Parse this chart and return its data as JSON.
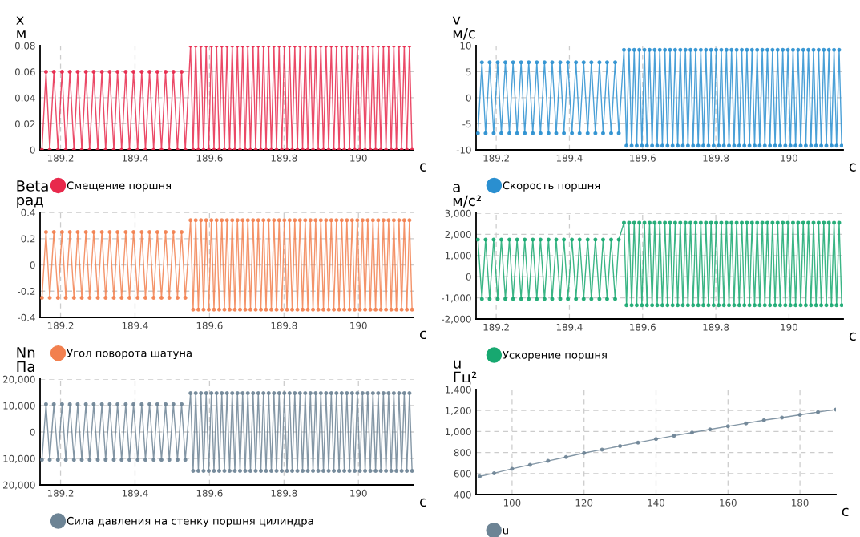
{
  "chart_data": [
    {
      "type": "line",
      "ylabel": "x\nм",
      "xlabel": "с",
      "xlim": [
        189.145,
        190.148
      ],
      "xticks": [
        189.2,
        189.4,
        189.6,
        189.8,
        190
      ],
      "ylim": [
        0,
        0.08
      ],
      "yticks": [
        0,
        0.02,
        0.04,
        0.06,
        0.08
      ],
      "grid": true,
      "legend": "bottom",
      "marker": "circle",
      "line_style": "solid",
      "x": [
        189.15,
        189.161,
        189.171,
        189.182,
        189.193,
        189.204,
        189.214,
        189.225,
        189.236,
        189.246,
        189.257,
        189.268,
        189.278,
        189.289,
        189.3,
        189.311,
        189.321,
        189.332,
        189.343,
        189.353,
        189.364,
        189.375,
        189.385,
        189.396,
        189.407,
        189.418,
        189.428,
        189.439,
        189.45,
        189.46,
        189.471,
        189.482,
        189.492,
        189.503,
        189.514,
        189.525,
        189.535,
        189.549,
        189.556,
        189.563,
        189.57,
        189.577,
        189.584,
        189.591,
        189.598,
        189.605,
        189.612,
        189.619,
        189.626,
        189.633,
        189.64,
        189.647,
        189.654,
        189.661,
        189.668,
        189.675,
        189.682,
        189.689,
        189.696,
        189.703,
        189.71,
        189.717,
        189.724,
        189.731,
        189.738,
        189.745,
        189.752,
        189.759,
        189.766,
        189.773,
        189.78,
        189.787,
        189.794,
        189.801,
        189.808,
        189.815,
        189.822,
        189.829,
        189.836,
        189.843,
        189.85,
        189.857,
        189.864,
        189.871,
        189.878,
        189.885,
        189.892,
        189.899,
        189.906,
        189.913,
        189.92,
        189.927,
        189.934,
        189.941,
        189.948,
        189.955,
        189.962,
        189.969,
        189.976,
        189.983,
        189.99,
        189.997,
        190.004,
        190.011,
        190.018,
        190.025,
        190.032,
        190.039,
        190.046,
        190.053,
        190.06,
        190.067,
        190.074,
        190.081,
        190.088,
        190.095,
        190.102,
        190.109,
        190.116,
        190.123,
        190.13,
        190.137,
        190.144
      ],
      "series": [
        {
          "name": "Смещение поршня",
          "color": "#e8294c",
          "values": [
            0,
            0.06,
            0,
            0.06,
            0,
            0.06,
            0,
            0.06,
            0,
            0.06,
            0,
            0.06,
            0,
            0.06,
            0,
            0.06,
            0,
            0.06,
            0,
            0.06,
            0,
            0.06,
            0,
            0.06,
            0,
            0.06,
            0,
            0.06,
            0,
            0.06,
            0,
            0.06,
            0,
            0.06,
            0,
            0.06,
            0,
            0.08,
            0,
            0.08,
            0,
            0.08,
            0,
            0.08,
            0,
            0.08,
            0,
            0.08,
            0,
            0.08,
            0,
            0.08,
            0,
            0.08,
            0,
            0.08,
            0,
            0.08,
            0,
            0.08,
            0,
            0.08,
            0,
            0.08,
            0,
            0.08,
            0,
            0.08,
            0,
            0.08,
            0,
            0.08,
            0,
            0.08,
            0,
            0.08,
            0,
            0.08,
            0,
            0.08,
            0,
            0.08,
            0,
            0.08,
            0,
            0.08,
            0,
            0.08,
            0,
            0.08,
            0,
            0.08,
            0,
            0.08,
            0,
            0.08,
            0,
            0.08,
            0,
            0.08,
            0,
            0.08,
            0,
            0.08,
            0,
            0.08,
            0,
            0.08,
            0,
            0.08,
            0,
            0.08,
            0,
            0.08,
            0,
            0.08,
            0,
            0.08,
            0,
            0.08,
            0,
            0.08,
            0
          ]
        }
      ]
    },
    {
      "type": "line",
      "ylabel": "v\nм/с",
      "xlabel": "с",
      "xlim": [
        189.145,
        190.148
      ],
      "xticks": [
        189.2,
        189.4,
        189.6,
        189.8,
        190
      ],
      "ylim": [
        -10,
        10
      ],
      "yticks": [
        -10,
        -5,
        0,
        5,
        10
      ],
      "grid": true,
      "legend": "bottom",
      "marker": "circle",
      "line_style": "solid",
      "x": [
        189.15,
        189.161,
        189.171,
        189.182,
        189.193,
        189.204,
        189.214,
        189.225,
        189.236,
        189.246,
        189.257,
        189.268,
        189.278,
        189.289,
        189.3,
        189.311,
        189.321,
        189.332,
        189.343,
        189.353,
        189.364,
        189.375,
        189.385,
        189.396,
        189.407,
        189.418,
        189.428,
        189.439,
        189.45,
        189.46,
        189.471,
        189.482,
        189.492,
        189.503,
        189.514,
        189.525,
        189.535,
        189.549,
        189.556,
        189.563,
        189.57,
        189.577,
        189.584,
        189.591,
        189.598,
        189.605,
        189.612,
        189.619,
        189.626,
        189.633,
        189.64,
        189.647,
        189.654,
        189.661,
        189.668,
        189.675,
        189.682,
        189.689,
        189.696,
        189.703,
        189.71,
        189.717,
        189.724,
        189.731,
        189.738,
        189.745,
        189.752,
        189.759,
        189.766,
        189.773,
        189.78,
        189.787,
        189.794,
        189.801,
        189.808,
        189.815,
        189.822,
        189.829,
        189.836,
        189.843,
        189.85,
        189.857,
        189.864,
        189.871,
        189.878,
        189.885,
        189.892,
        189.899,
        189.906,
        189.913,
        189.92,
        189.927,
        189.934,
        189.941,
        189.948,
        189.955,
        189.962,
        189.969,
        189.976,
        189.983,
        189.99,
        189.997,
        190.004,
        190.011,
        190.018,
        190.025,
        190.032,
        190.039,
        190.046,
        190.053,
        190.06,
        190.067,
        190.074,
        190.081,
        190.088,
        190.095,
        190.102,
        190.109,
        190.116,
        190.123,
        190.13,
        190.137,
        190.144
      ],
      "series": [
        {
          "name": "Скорость поршня",
          "color": "#2a8fd0",
          "values": [
            -6.8,
            6.8,
            -6.8,
            6.8,
            -6.8,
            6.8,
            -6.8,
            6.8,
            -6.8,
            6.8,
            -6.8,
            6.8,
            -6.8,
            6.8,
            -6.8,
            6.8,
            -6.8,
            6.8,
            -6.8,
            6.8,
            -6.8,
            6.8,
            -6.8,
            6.8,
            -6.8,
            6.8,
            -6.8,
            6.8,
            -6.8,
            6.8,
            -6.8,
            6.8,
            -6.8,
            6.8,
            -6.8,
            6.8,
            -6.8,
            9.2,
            -9.2,
            9.2,
            -9.2,
            9.2,
            -9.2,
            9.2,
            -9.2,
            9.2,
            -9.2,
            9.2,
            -9.2,
            9.2,
            -9.2,
            9.2,
            -9.2,
            9.2,
            -9.2,
            9.2,
            -9.2,
            9.2,
            -9.2,
            9.2,
            -9.2,
            9.2,
            -9.2,
            9.2,
            -9.2,
            9.2,
            -9.2,
            9.2,
            -9.2,
            9.2,
            -9.2,
            9.2,
            -9.2,
            9.2,
            -9.2,
            9.2,
            -9.2,
            9.2,
            -9.2,
            9.2,
            -9.2,
            9.2,
            -9.2,
            9.2,
            -9.2,
            9.2,
            -9.2,
            9.2,
            -9.2,
            9.2,
            -9.2,
            9.2,
            -9.2,
            9.2,
            -9.2,
            9.2,
            -9.2,
            9.2,
            -9.2,
            9.2,
            -9.2,
            9.2,
            -9.2,
            9.2,
            -9.2,
            9.2,
            -9.2,
            9.2,
            -9.2,
            9.2,
            -9.2,
            9.2,
            -9.2,
            9.2,
            -9.2,
            9.2,
            -9.2,
            9.2,
            -9.2,
            9.2,
            -9.2,
            9.2,
            -9.2
          ]
        }
      ]
    },
    {
      "type": "line",
      "ylabel": "Beta\nрад",
      "xlabel": "с",
      "xlim": [
        189.145,
        190.148
      ],
      "xticks": [
        189.2,
        189.4,
        189.6,
        189.8,
        190
      ],
      "ylim": [
        -0.4,
        0.4
      ],
      "yticks": [
        -0.4,
        -0.2,
        0,
        0.2,
        0.4
      ],
      "grid": true,
      "legend": "bottom",
      "marker": "circle",
      "line_style": "solid",
      "x": [
        189.15,
        189.161,
        189.171,
        189.182,
        189.193,
        189.204,
        189.214,
        189.225,
        189.236,
        189.246,
        189.257,
        189.268,
        189.278,
        189.289,
        189.3,
        189.311,
        189.321,
        189.332,
        189.343,
        189.353,
        189.364,
        189.375,
        189.385,
        189.396,
        189.407,
        189.418,
        189.428,
        189.439,
        189.45,
        189.46,
        189.471,
        189.482,
        189.492,
        189.503,
        189.514,
        189.525,
        189.535,
        189.549,
        189.556,
        189.563,
        189.57,
        189.577,
        189.584,
        189.591,
        189.598,
        189.605,
        189.612,
        189.619,
        189.626,
        189.633,
        189.64,
        189.647,
        189.654,
        189.661,
        189.668,
        189.675,
        189.682,
        189.689,
        189.696,
        189.703,
        189.71,
        189.717,
        189.724,
        189.731,
        189.738,
        189.745,
        189.752,
        189.759,
        189.766,
        189.773,
        189.78,
        189.787,
        189.794,
        189.801,
        189.808,
        189.815,
        189.822,
        189.829,
        189.836,
        189.843,
        189.85,
        189.857,
        189.864,
        189.871,
        189.878,
        189.885,
        189.892,
        189.899,
        189.906,
        189.913,
        189.92,
        189.927,
        189.934,
        189.941,
        189.948,
        189.955,
        189.962,
        189.969,
        189.976,
        189.983,
        189.99,
        189.997,
        190.004,
        190.011,
        190.018,
        190.025,
        190.032,
        190.039,
        190.046,
        190.053,
        190.06,
        190.067,
        190.074,
        190.081,
        190.088,
        190.095,
        190.102,
        190.109,
        190.116,
        190.123,
        190.13,
        190.137,
        190.144
      ],
      "series": [
        {
          "name": "Угол поворота шатуна",
          "color": "#f2804f",
          "values": [
            -0.25,
            0.25,
            -0.25,
            0.25,
            -0.25,
            0.25,
            -0.25,
            0.25,
            -0.25,
            0.25,
            -0.25,
            0.25,
            -0.25,
            0.25,
            -0.25,
            0.25,
            -0.25,
            0.25,
            -0.25,
            0.25,
            -0.25,
            0.25,
            -0.25,
            0.25,
            -0.25,
            0.25,
            -0.25,
            0.25,
            -0.25,
            0.25,
            -0.25,
            0.25,
            -0.25,
            0.25,
            -0.25,
            0.25,
            -0.25,
            0.34,
            -0.34,
            0.34,
            -0.34,
            0.34,
            -0.34,
            0.34,
            -0.34,
            0.34,
            -0.34,
            0.34,
            -0.34,
            0.34,
            -0.34,
            0.34,
            -0.34,
            0.34,
            -0.34,
            0.34,
            -0.34,
            0.34,
            -0.34,
            0.34,
            -0.34,
            0.34,
            -0.34,
            0.34,
            -0.34,
            0.34,
            -0.34,
            0.34,
            -0.34,
            0.34,
            -0.34,
            0.34,
            -0.34,
            0.34,
            -0.34,
            0.34,
            -0.34,
            0.34,
            -0.34,
            0.34,
            -0.34,
            0.34,
            -0.34,
            0.34,
            -0.34,
            0.34,
            -0.34,
            0.34,
            -0.34,
            0.34,
            -0.34,
            0.34,
            -0.34,
            0.34,
            -0.34,
            0.34,
            -0.34,
            0.34,
            -0.34,
            0.34,
            -0.34,
            0.34,
            -0.34,
            0.34,
            -0.34,
            0.34,
            -0.34,
            0.34,
            -0.34,
            0.34,
            -0.34,
            0.34,
            -0.34,
            0.34,
            -0.34,
            0.34,
            -0.34,
            0.34,
            -0.34,
            0.34,
            -0.34,
            0.34,
            -0.34
          ]
        }
      ]
    },
    {
      "type": "line",
      "ylabel": "a\nм/с²",
      "xlabel": "с",
      "xlim": [
        189.145,
        190.148
      ],
      "xticks": [
        189.2,
        189.4,
        189.6,
        189.8,
        190
      ],
      "ylim": [
        -2000,
        3000
      ],
      "yticks": [
        {
          "value": -2000,
          "label": "-2,000"
        },
        {
          "value": -1000,
          "label": "-1,000"
        },
        0,
        {
          "value": 1000,
          "label": "1,000"
        },
        {
          "value": 2000,
          "label": "2,000"
        },
        {
          "value": 3000,
          "label": "3,000"
        }
      ],
      "grid": true,
      "legend": "bottom",
      "marker": "circle",
      "line_style": "solid",
      "x": [
        189.15,
        189.161,
        189.171,
        189.182,
        189.193,
        189.204,
        189.214,
        189.225,
        189.236,
        189.246,
        189.257,
        189.268,
        189.278,
        189.289,
        189.3,
        189.311,
        189.321,
        189.332,
        189.343,
        189.353,
        189.364,
        189.375,
        189.385,
        189.396,
        189.407,
        189.418,
        189.428,
        189.439,
        189.45,
        189.46,
        189.471,
        189.482,
        189.492,
        189.503,
        189.514,
        189.525,
        189.535,
        189.549,
        189.556,
        189.563,
        189.57,
        189.577,
        189.584,
        189.591,
        189.598,
        189.605,
        189.612,
        189.619,
        189.626,
        189.633,
        189.64,
        189.647,
        189.654,
        189.661,
        189.668,
        189.675,
        189.682,
        189.689,
        189.696,
        189.703,
        189.71,
        189.717,
        189.724,
        189.731,
        189.738,
        189.745,
        189.752,
        189.759,
        189.766,
        189.773,
        189.78,
        189.787,
        189.794,
        189.801,
        189.808,
        189.815,
        189.822,
        189.829,
        189.836,
        189.843,
        189.85,
        189.857,
        189.864,
        189.871,
        189.878,
        189.885,
        189.892,
        189.899,
        189.906,
        189.913,
        189.92,
        189.927,
        189.934,
        189.941,
        189.948,
        189.955,
        189.962,
        189.969,
        189.976,
        189.983,
        189.99,
        189.997,
        190.004,
        190.011,
        190.018,
        190.025,
        190.032,
        190.039,
        190.046,
        190.053,
        190.06,
        190.067,
        190.074,
        190.081,
        190.088,
        190.095,
        190.102,
        190.109,
        190.116,
        190.123,
        190.13,
        190.137,
        190.144
      ],
      "series": [
        {
          "name": "Ускорение поршня",
          "color": "#17a870",
          "values": [
            1750,
            -1050,
            1750,
            -1050,
            1750,
            -1050,
            1750,
            -1050,
            1750,
            -1050,
            1750,
            -1050,
            1750,
            -1050,
            1750,
            -1050,
            1750,
            -1050,
            1750,
            -1050,
            1750,
            -1050,
            1750,
            -1050,
            1750,
            -1050,
            1750,
            -1050,
            1750,
            -1050,
            1750,
            -1050,
            1750,
            -1050,
            1750,
            -1050,
            1750,
            2550,
            -1350,
            2550,
            -1350,
            2550,
            -1350,
            2550,
            -1350,
            2550,
            -1350,
            2550,
            -1350,
            2550,
            -1350,
            2550,
            -1350,
            2550,
            -1350,
            2550,
            -1350,
            2550,
            -1350,
            2550,
            -1350,
            2550,
            -1350,
            2550,
            -1350,
            2550,
            -1350,
            2550,
            -1350,
            2550,
            -1350,
            2550,
            -1350,
            2550,
            -1350,
            2550,
            -1350,
            2550,
            -1350,
            2550,
            -1350,
            2550,
            -1350,
            2550,
            -1350,
            2550,
            -1350,
            2550,
            -1350,
            2550,
            -1350,
            2550,
            -1350,
            2550,
            -1350,
            2550,
            -1350,
            2550,
            -1350,
            2550,
            -1350,
            2550,
            -1350,
            2550,
            -1350,
            2550,
            -1350,
            2550,
            -1350,
            2550,
            -1350,
            2550,
            -1350,
            2550,
            -1350,
            2550,
            -1350,
            2550,
            -1350,
            2550,
            -1350,
            2550,
            -1350
          ]
        }
      ]
    },
    {
      "type": "line",
      "ylabel": "Nn\nПа",
      "xlabel": "с",
      "xlim": [
        189.145,
        190.148
      ],
      "xticks": [
        189.2,
        189.4,
        189.6,
        189.8,
        190
      ],
      "ylim": [
        -20000,
        20000
      ],
      "yticks": [
        {
          "value": -20000,
          "label": "20,000"
        },
        {
          "value": -10000,
          "label": "10,000"
        },
        0,
        {
          "value": 10000,
          "label": "10,000"
        },
        {
          "value": 20000,
          "label": "20,000"
        }
      ],
      "grid": true,
      "legend": "bottom",
      "marker": "circle",
      "line_style": "solid",
      "x": [
        189.15,
        189.161,
        189.171,
        189.182,
        189.193,
        189.204,
        189.214,
        189.225,
        189.236,
        189.246,
        189.257,
        189.268,
        189.278,
        189.289,
        189.3,
        189.311,
        189.321,
        189.332,
        189.343,
        189.353,
        189.364,
        189.375,
        189.385,
        189.396,
        189.407,
        189.418,
        189.428,
        189.439,
        189.45,
        189.46,
        189.471,
        189.482,
        189.492,
        189.503,
        189.514,
        189.525,
        189.535,
        189.549,
        189.556,
        189.563,
        189.57,
        189.577,
        189.584,
        189.591,
        189.598,
        189.605,
        189.612,
        189.619,
        189.626,
        189.633,
        189.64,
        189.647,
        189.654,
        189.661,
        189.668,
        189.675,
        189.682,
        189.689,
        189.696,
        189.703,
        189.71,
        189.717,
        189.724,
        189.731,
        189.738,
        189.745,
        189.752,
        189.759,
        189.766,
        189.773,
        189.78,
        189.787,
        189.794,
        189.801,
        189.808,
        189.815,
        189.822,
        189.829,
        189.836,
        189.843,
        189.85,
        189.857,
        189.864,
        189.871,
        189.878,
        189.885,
        189.892,
        189.899,
        189.906,
        189.913,
        189.92,
        189.927,
        189.934,
        189.941,
        189.948,
        189.955,
        189.962,
        189.969,
        189.976,
        189.983,
        189.99,
        189.997,
        190.004,
        190.011,
        190.018,
        190.025,
        190.032,
        190.039,
        190.046,
        190.053,
        190.06,
        190.067,
        190.074,
        190.081,
        190.088,
        190.095,
        190.102,
        190.109,
        190.116,
        190.123,
        190.13,
        190.137,
        190.144
      ],
      "series": [
        {
          "name": "Сила давления на стенку поршня цилиндра",
          "color": "#6d8495",
          "values": [
            -10500,
            10500,
            -10500,
            10500,
            -10500,
            10500,
            -10500,
            10500,
            -10500,
            10500,
            -10500,
            10500,
            -10500,
            10500,
            -10500,
            10500,
            -10500,
            10500,
            -10500,
            10500,
            -10500,
            10500,
            -10500,
            10500,
            -10500,
            10500,
            -10500,
            10500,
            -10500,
            10500,
            -10500,
            10500,
            -10500,
            10500,
            -10500,
            10500,
            -10500,
            14700,
            -14700,
            14700,
            -14700,
            14700,
            -14700,
            14700,
            -14700,
            14700,
            -14700,
            14700,
            -14700,
            14700,
            -14700,
            14700,
            -14700,
            14700,
            -14700,
            14700,
            -14700,
            14700,
            -14700,
            14700,
            -14700,
            14700,
            -14700,
            14700,
            -14700,
            14700,
            -14700,
            14700,
            -14700,
            14700,
            -14700,
            14700,
            -14700,
            14700,
            -14700,
            14700,
            -14700,
            14700,
            -14700,
            14700,
            -14700,
            14700,
            -14700,
            14700,
            -14700,
            14700,
            -14700,
            14700,
            -14700,
            14700,
            -14700,
            14700,
            -14700,
            14700,
            -14700,
            14700,
            -14700,
            14700,
            -14700,
            14700,
            -14700,
            14700,
            -14700,
            14700,
            -14700,
            14700,
            -14700,
            14700,
            -14700,
            14700,
            -14700,
            14700,
            -14700,
            14700,
            -14700,
            14700,
            -14700,
            14700,
            -14700,
            14700,
            -14700,
            14700,
            -14700
          ]
        }
      ]
    },
    {
      "type": "line",
      "ylabel": "u\nГц²",
      "xlabel": "с",
      "xlim": [
        90,
        190
      ],
      "xticks": [
        100,
        120,
        140,
        160,
        180
      ],
      "ylim": [
        400,
        1400
      ],
      "yticks": [
        400,
        600,
        800,
        {
          "value": 1000,
          "label": "1,000"
        },
        {
          "value": 1200,
          "label": "1,200"
        },
        {
          "value": 1400,
          "label": "1,400"
        }
      ],
      "grid": true,
      "legend": "bottom",
      "marker": "circle",
      "line_style": "solid",
      "x": [
        91,
        95,
        100,
        105,
        110,
        115,
        120,
        125,
        130,
        135,
        140,
        145,
        150,
        155,
        160,
        165,
        170,
        175,
        180,
        185,
        190
      ],
      "series": [
        {
          "name": "u",
          "color": "#6d8495",
          "values": [
            572,
            603,
            645,
            683,
            720,
            757,
            795,
            828,
            862,
            895,
            928,
            960,
            990,
            1020,
            1050,
            1078,
            1108,
            1133,
            1160,
            1185,
            1210
          ]
        }
      ]
    }
  ]
}
